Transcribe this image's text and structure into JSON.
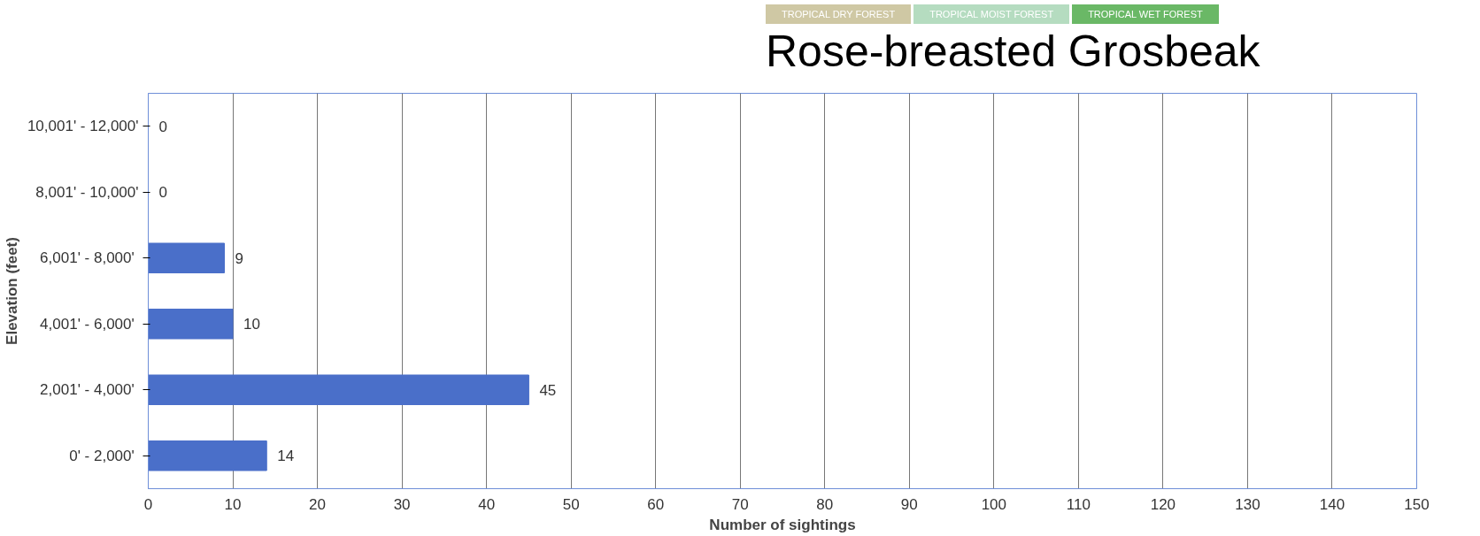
{
  "chart_data": {
    "type": "bar",
    "orientation": "horizontal",
    "title": "Rose-breasted Grosbeak",
    "xlabel": "Number of sightings",
    "ylabel": "Elevation (feet)",
    "annotations": [
      "TROPICAL DRY FOREST",
      "TROPICAL MOIST FOREST",
      "TROPICAL WET FOREST"
    ],
    "categories": [
      "10,001' - 12,000'",
      "8,001' - 10,000'",
      "6,001' -  8,000'",
      "4,001' -  6,000'",
      "2,001' -  4,000'",
      "0' -  2,000'"
    ],
    "values": [
      0,
      0,
      9,
      10,
      45,
      14
    ],
    "color": "#4a6fc9",
    "data_labels": true,
    "xlim": [
      0,
      150
    ],
    "xticks": [
      0,
      10,
      20,
      30,
      40,
      50,
      60,
      70,
      80,
      90,
      100,
      110,
      120,
      130,
      140,
      150
    ],
    "grid": "x"
  }
}
